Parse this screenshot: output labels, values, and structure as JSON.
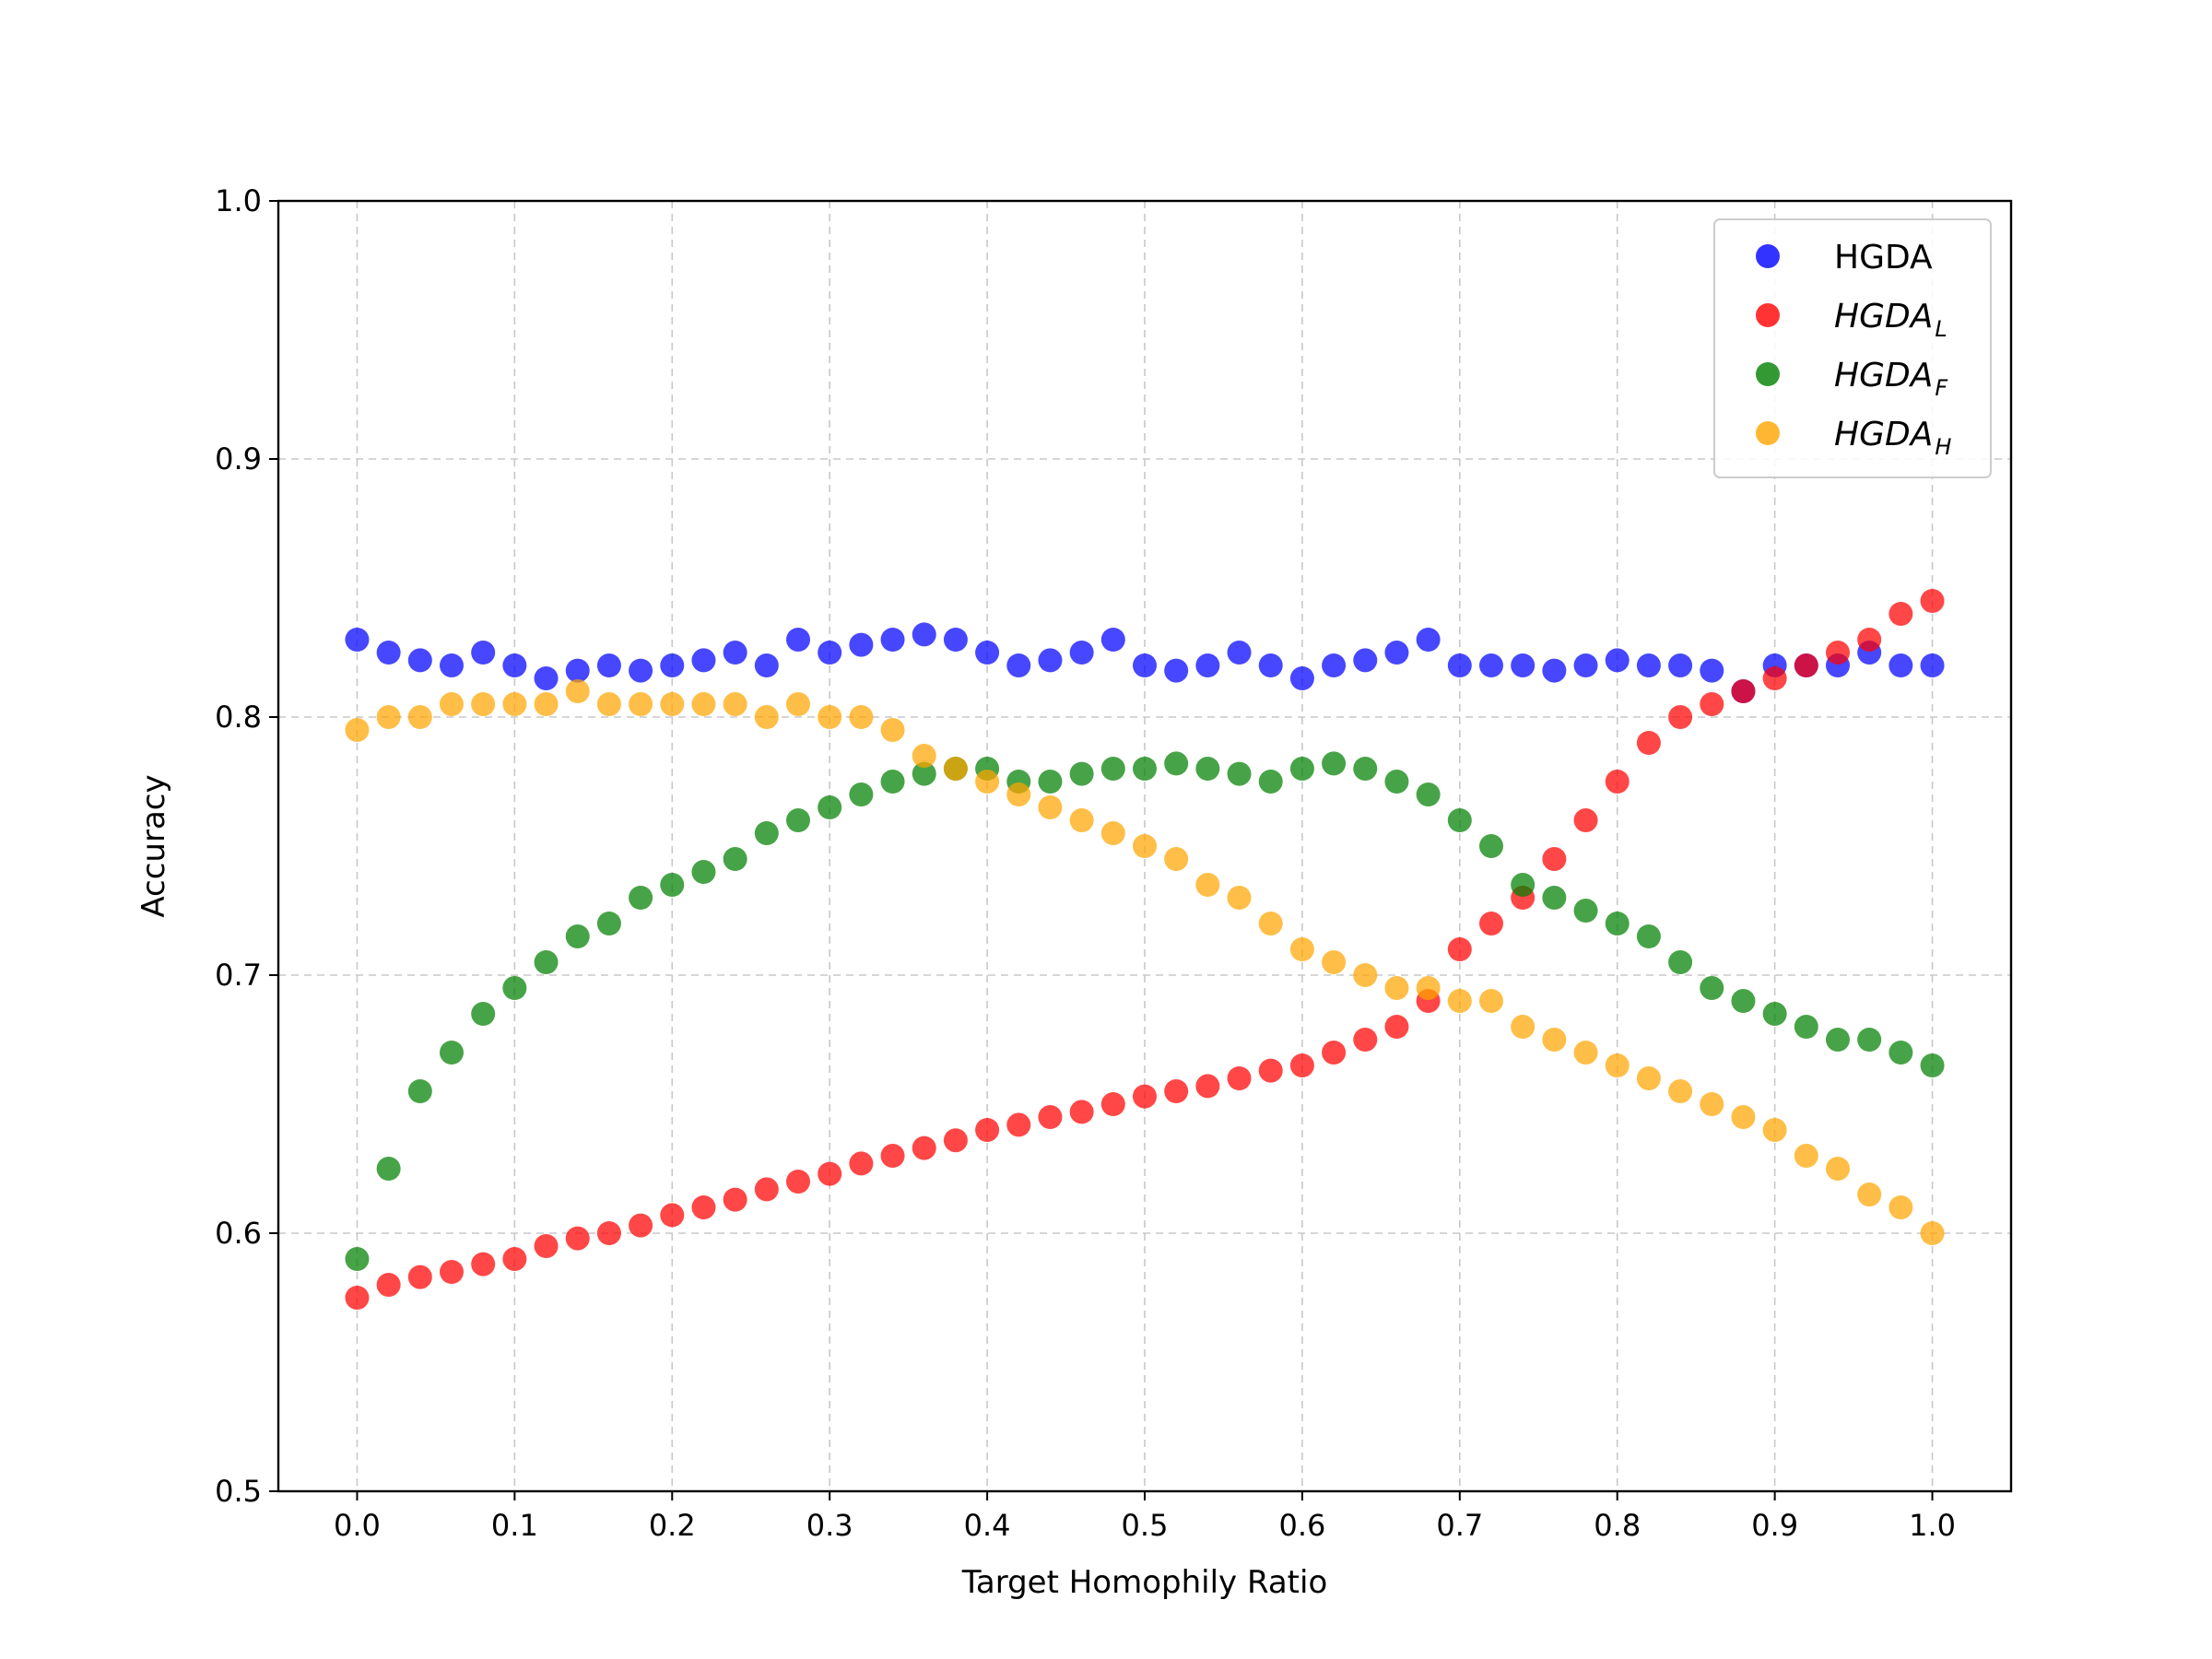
{
  "chart_data": {
    "type": "scatter",
    "title": "",
    "xlabel": "Target Homophily Ratio",
    "ylabel": "Accuracy",
    "xlim": [
      -0.05,
      1.05
    ],
    "ylim": [
      0.5,
      1.0
    ],
    "xticks": [
      "0.0",
      "0.1",
      "0.2",
      "0.3",
      "0.4",
      "0.5",
      "0.6",
      "0.7",
      "0.8",
      "0.9",
      "1.0"
    ],
    "yticks": [
      "0.5",
      "0.6",
      "0.7",
      "0.8",
      "0.9",
      "1.0"
    ],
    "grid": true,
    "legend_position": "top-right",
    "series": [
      {
        "name": "HGDA",
        "base": "HGDA",
        "sub": "",
        "italic": false,
        "color": "#0000ff",
        "x": [
          0.0,
          0.02,
          0.04,
          0.06,
          0.08,
          0.1,
          0.12,
          0.14,
          0.16,
          0.18,
          0.2,
          0.22,
          0.24,
          0.26,
          0.28,
          0.3,
          0.32,
          0.34,
          0.36,
          0.38,
          0.4,
          0.42,
          0.44,
          0.46,
          0.48,
          0.5,
          0.52,
          0.54,
          0.56,
          0.58,
          0.6,
          0.62,
          0.64,
          0.66,
          0.68,
          0.7,
          0.72,
          0.74,
          0.76,
          0.78,
          0.8,
          0.82,
          0.84,
          0.86,
          0.88,
          0.9,
          0.92,
          0.94,
          0.96,
          0.98,
          1.0
        ],
        "y": [
          0.83,
          0.825,
          0.822,
          0.82,
          0.825,
          0.82,
          0.815,
          0.818,
          0.82,
          0.818,
          0.82,
          0.822,
          0.825,
          0.82,
          0.83,
          0.825,
          0.828,
          0.83,
          0.832,
          0.83,
          0.825,
          0.82,
          0.822,
          0.825,
          0.83,
          0.82,
          0.818,
          0.82,
          0.825,
          0.82,
          0.815,
          0.82,
          0.822,
          0.825,
          0.83,
          0.82,
          0.82,
          0.82,
          0.818,
          0.82,
          0.822,
          0.82,
          0.82,
          0.818,
          0.81,
          0.82,
          0.82,
          0.82,
          0.825,
          0.82,
          0.82
        ]
      },
      {
        "name": "HGDA_L",
        "base": "HGDA",
        "sub": "L",
        "italic": true,
        "color": "#ff0000",
        "x": [
          0.0,
          0.02,
          0.04,
          0.06,
          0.08,
          0.1,
          0.12,
          0.14,
          0.16,
          0.18,
          0.2,
          0.22,
          0.24,
          0.26,
          0.28,
          0.3,
          0.32,
          0.34,
          0.36,
          0.38,
          0.4,
          0.42,
          0.44,
          0.46,
          0.48,
          0.5,
          0.52,
          0.54,
          0.56,
          0.58,
          0.6,
          0.62,
          0.64,
          0.66,
          0.68,
          0.7,
          0.72,
          0.74,
          0.76,
          0.78,
          0.8,
          0.82,
          0.84,
          0.86,
          0.88,
          0.9,
          0.92,
          0.94,
          0.96,
          0.98,
          1.0
        ],
        "y": [
          0.575,
          0.58,
          0.583,
          0.585,
          0.588,
          0.59,
          0.595,
          0.598,
          0.6,
          0.603,
          0.607,
          0.61,
          0.613,
          0.617,
          0.62,
          0.623,
          0.627,
          0.63,
          0.633,
          0.636,
          0.64,
          0.642,
          0.645,
          0.647,
          0.65,
          0.653,
          0.655,
          0.657,
          0.66,
          0.663,
          0.665,
          0.67,
          0.675,
          0.68,
          0.69,
          0.71,
          0.72,
          0.73,
          0.745,
          0.76,
          0.775,
          0.79,
          0.8,
          0.805,
          0.81,
          0.815,
          0.82,
          0.825,
          0.83,
          0.84,
          0.845
        ]
      },
      {
        "name": "HGDA_F",
        "base": "HGDA",
        "sub": "F",
        "italic": true,
        "color": "#008000",
        "x": [
          0.0,
          0.02,
          0.04,
          0.06,
          0.08,
          0.1,
          0.12,
          0.14,
          0.16,
          0.18,
          0.2,
          0.22,
          0.24,
          0.26,
          0.28,
          0.3,
          0.32,
          0.34,
          0.36,
          0.38,
          0.4,
          0.42,
          0.44,
          0.46,
          0.48,
          0.5,
          0.52,
          0.54,
          0.56,
          0.58,
          0.6,
          0.62,
          0.64,
          0.66,
          0.68,
          0.7,
          0.72,
          0.74,
          0.76,
          0.78,
          0.8,
          0.82,
          0.84,
          0.86,
          0.88,
          0.9,
          0.92,
          0.94,
          0.96,
          0.98,
          1.0
        ],
        "y": [
          0.59,
          0.625,
          0.655,
          0.67,
          0.685,
          0.695,
          0.705,
          0.715,
          0.72,
          0.73,
          0.735,
          0.74,
          0.745,
          0.755,
          0.76,
          0.765,
          0.77,
          0.775,
          0.778,
          0.78,
          0.78,
          0.775,
          0.775,
          0.778,
          0.78,
          0.78,
          0.782,
          0.78,
          0.778,
          0.775,
          0.78,
          0.782,
          0.78,
          0.775,
          0.77,
          0.76,
          0.75,
          0.735,
          0.73,
          0.725,
          0.72,
          0.715,
          0.705,
          0.695,
          0.69,
          0.685,
          0.68,
          0.675,
          0.675,
          0.67,
          0.665
        ]
      },
      {
        "name": "HGDA_H",
        "base": "HGDA",
        "sub": "H",
        "italic": true,
        "color": "#ffa500",
        "x": [
          0.0,
          0.02,
          0.04,
          0.06,
          0.08,
          0.1,
          0.12,
          0.14,
          0.16,
          0.18,
          0.2,
          0.22,
          0.24,
          0.26,
          0.28,
          0.3,
          0.32,
          0.34,
          0.36,
          0.38,
          0.4,
          0.42,
          0.44,
          0.46,
          0.48,
          0.5,
          0.52,
          0.54,
          0.56,
          0.58,
          0.6,
          0.62,
          0.64,
          0.66,
          0.68,
          0.7,
          0.72,
          0.74,
          0.76,
          0.78,
          0.8,
          0.82,
          0.84,
          0.86,
          0.88,
          0.9,
          0.92,
          0.94,
          0.96,
          0.98,
          1.0
        ],
        "y": [
          0.795,
          0.8,
          0.8,
          0.805,
          0.805,
          0.805,
          0.805,
          0.81,
          0.805,
          0.805,
          0.805,
          0.805,
          0.805,
          0.8,
          0.805,
          0.8,
          0.8,
          0.795,
          0.785,
          0.78,
          0.775,
          0.77,
          0.765,
          0.76,
          0.755,
          0.75,
          0.745,
          0.735,
          0.73,
          0.72,
          0.71,
          0.705,
          0.7,
          0.695,
          0.695,
          0.69,
          0.69,
          0.68,
          0.675,
          0.67,
          0.665,
          0.66,
          0.655,
          0.65,
          0.645,
          0.64,
          0.63,
          0.625,
          0.615,
          0.61,
          0.6
        ]
      }
    ]
  }
}
